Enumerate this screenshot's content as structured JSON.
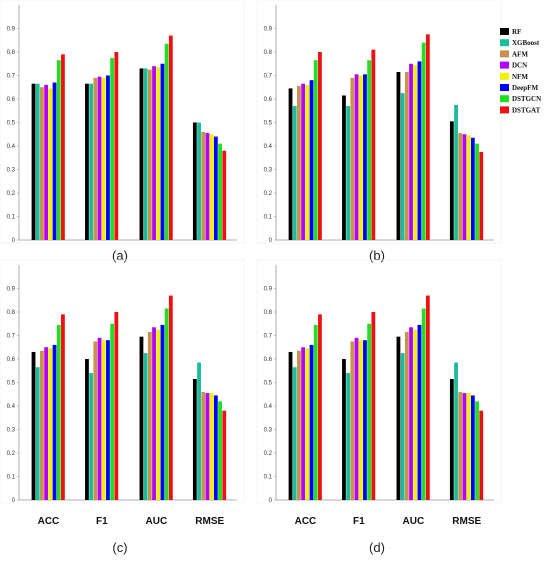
{
  "legend": {
    "items": [
      {
        "name": "RF",
        "color": "#000000"
      },
      {
        "name": "XGBoost",
        "color": "#1abc9c"
      },
      {
        "name": "AFM",
        "color": "#c8924a"
      },
      {
        "name": "DCN",
        "color": "#b400ff"
      },
      {
        "name": "NFM",
        "color": "#f0f000"
      },
      {
        "name": "DeepFM",
        "color": "#0000ff"
      },
      {
        "name": "DSTGCN",
        "color": "#22dd22"
      },
      {
        "name": "DSTGAT",
        "color": "#ee1111"
      }
    ]
  },
  "chart_data": [
    {
      "type": "bar",
      "panel_label": "(a)",
      "categories": [
        "ACC",
        "F1",
        "AUC",
        "RMSE"
      ],
      "show_category_labels": false,
      "ylim": [
        0,
        1
      ],
      "yticks": [
        "0",
        "0.1",
        "0.2",
        "0.3",
        "0.4",
        "0.5",
        "0.6",
        "0.7",
        "0.8",
        "0.9"
      ],
      "series": [
        {
          "name": "RF",
          "values": [
            0.665,
            0.665,
            0.73,
            0.5
          ]
        },
        {
          "name": "XGBoost",
          "values": [
            0.665,
            0.665,
            0.73,
            0.5
          ]
        },
        {
          "name": "AFM",
          "values": [
            0.65,
            0.69,
            0.725,
            0.46
          ]
        },
        {
          "name": "DCN",
          "values": [
            0.66,
            0.695,
            0.74,
            0.455
          ]
        },
        {
          "name": "NFM",
          "values": [
            0.645,
            0.69,
            0.735,
            0.45
          ]
        },
        {
          "name": "DeepFM",
          "values": [
            0.67,
            0.7,
            0.75,
            0.44
          ]
        },
        {
          "name": "DSTGCN",
          "values": [
            0.765,
            0.775,
            0.835,
            0.41
          ]
        },
        {
          "name": "DSTGAT",
          "values": [
            0.79,
            0.8,
            0.87,
            0.38
          ]
        }
      ]
    },
    {
      "type": "bar",
      "panel_label": "(b)",
      "categories": [
        "ACC",
        "F1",
        "AUC",
        "RMSE"
      ],
      "show_category_labels": false,
      "ylim": [
        0,
        1
      ],
      "yticks": [
        "0",
        "0.1",
        "0.2",
        "0.3",
        "0.4",
        "0.5",
        "0.6",
        "0.7",
        "0.8",
        "0.9"
      ],
      "series": [
        {
          "name": "RF",
          "values": [
            0.645,
            0.615,
            0.715,
            0.505
          ]
        },
        {
          "name": "XGBoost",
          "values": [
            0.57,
            0.57,
            0.625,
            0.575
          ]
        },
        {
          "name": "AFM",
          "values": [
            0.655,
            0.69,
            0.715,
            0.455
          ]
        },
        {
          "name": "DCN",
          "values": [
            0.665,
            0.705,
            0.75,
            0.45
          ]
        },
        {
          "name": "NFM",
          "values": [
            0.66,
            0.7,
            0.745,
            0.445
          ]
        },
        {
          "name": "DeepFM",
          "values": [
            0.68,
            0.705,
            0.76,
            0.435
          ]
        },
        {
          "name": "DSTGCN",
          "values": [
            0.765,
            0.765,
            0.84,
            0.41
          ]
        },
        {
          "name": "DSTGAT",
          "values": [
            0.8,
            0.81,
            0.875,
            0.375
          ]
        }
      ]
    },
    {
      "type": "bar",
      "panel_label": "(c)",
      "categories": [
        "ACC",
        "F1",
        "AUC",
        "RMSE"
      ],
      "show_category_labels": true,
      "ylim": [
        0,
        1
      ],
      "yticks": [
        "0",
        "0.1",
        "0.2",
        "0.3",
        "0.4",
        "0.5",
        "0.6",
        "0.7",
        "0.8",
        "0.9"
      ],
      "series": [
        {
          "name": "RF",
          "values": [
            0.63,
            0.6,
            0.695,
            0.515
          ]
        },
        {
          "name": "XGBoost",
          "values": [
            0.565,
            0.54,
            0.625,
            0.585
          ]
        },
        {
          "name": "AFM",
          "values": [
            0.635,
            0.675,
            0.715,
            0.46
          ]
        },
        {
          "name": "DCN",
          "values": [
            0.65,
            0.69,
            0.735,
            0.455
          ]
        },
        {
          "name": "NFM",
          "values": [
            0.645,
            0.68,
            0.725,
            0.455
          ]
        },
        {
          "name": "DeepFM",
          "values": [
            0.66,
            0.68,
            0.745,
            0.445
          ]
        },
        {
          "name": "DSTGCN",
          "values": [
            0.745,
            0.75,
            0.815,
            0.42
          ]
        },
        {
          "name": "DSTGAT",
          "values": [
            0.79,
            0.8,
            0.87,
            0.38
          ]
        }
      ]
    },
    {
      "type": "bar",
      "panel_label": "(d)",
      "categories": [
        "ACC",
        "F1",
        "AUC",
        "RMSE"
      ],
      "show_category_labels": true,
      "ylim": [
        0,
        1
      ],
      "yticks": [
        "0",
        "0.1",
        "0.2",
        "0.3",
        "0.4",
        "0.5",
        "0.6",
        "0.7",
        "0.8",
        "0.9"
      ],
      "series": [
        {
          "name": "RF",
          "values": [
            0.63,
            0.6,
            0.695,
            0.515
          ]
        },
        {
          "name": "XGBoost",
          "values": [
            0.565,
            0.54,
            0.625,
            0.585
          ]
        },
        {
          "name": "AFM",
          "values": [
            0.635,
            0.675,
            0.715,
            0.46
          ]
        },
        {
          "name": "DCN",
          "values": [
            0.65,
            0.69,
            0.735,
            0.455
          ]
        },
        {
          "name": "NFM",
          "values": [
            0.645,
            0.68,
            0.725,
            0.455
          ]
        },
        {
          "name": "DeepFM",
          "values": [
            0.66,
            0.68,
            0.745,
            0.445
          ]
        },
        {
          "name": "DSTGCN",
          "values": [
            0.745,
            0.75,
            0.815,
            0.42
          ]
        },
        {
          "name": "DSTGAT",
          "values": [
            0.79,
            0.8,
            0.87,
            0.38
          ]
        }
      ]
    }
  ]
}
